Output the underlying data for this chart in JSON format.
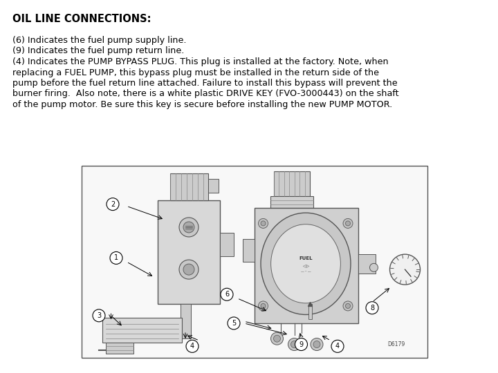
{
  "title": "OIL LINE CONNECTIONS:",
  "body_lines": [
    "(6) Indicates the fuel pump supply line.",
    "(9) Indicates the fuel pump return line.",
    "(4) Indicates the PUMP BYPASS PLUG. This plug is installed at the factory. Note, when",
    "replacing a FUEL PUMP, this bypass plug must be installed in the return side of the",
    "pump before the fuel return line attached. Failure to install this bypass will prevent the",
    "burner firing.  Also note, there is a white plastic DRIVE KEY (FVO-3000443) on the shaft",
    "of the pump motor. Be sure this key is secure before installing the new PUMP MOTOR."
  ],
  "bg_color": "#ffffff",
  "text_color": "#000000",
  "title_fontsize": 10.5,
  "body_fontsize": 9.2,
  "diagram_label": "D6179"
}
